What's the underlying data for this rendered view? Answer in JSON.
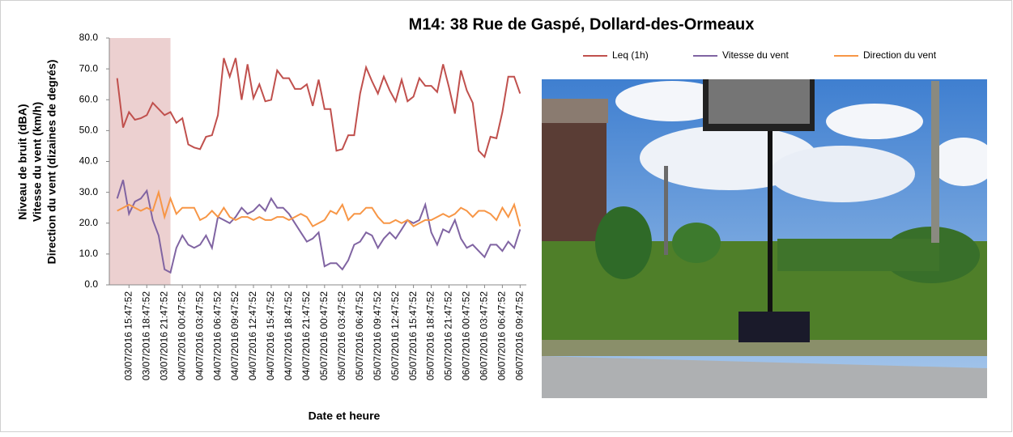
{
  "chart_data": {
    "type": "line",
    "title": "M14: 38 Rue de Gaspé, Dollard-des-Ormeaux",
    "x_label": "Date et heure",
    "y_label": [
      "Niveau de bruit (dBA)",
      "Vitesse du vent (km/h)",
      "Direction du vent (dizaines de degrés)"
    ],
    "categories": [
      null,
      null,
      "03/07/2016 15:47:52",
      null,
      null,
      "03/07/2016 18:47:52",
      null,
      null,
      "03/07/2016 21:47:52",
      null,
      null,
      "04/07/2016 00:47:52",
      null,
      null,
      "04/07/2016 03:47:52",
      null,
      null,
      "04/07/2016 06:47:52",
      null,
      null,
      "04/07/2016 09:47:52",
      null,
      null,
      "04/07/2016 12:47:52",
      null,
      null,
      "04/07/2016 15:47:52",
      null,
      null,
      "04/07/2016 18:47:52",
      null,
      null,
      "04/07/2016 21:47:52",
      null,
      null,
      "05/07/2016 00:47:52",
      null,
      null,
      "05/07/2016 03:47:52",
      null,
      null,
      "05/07/2016 06:47:52",
      null,
      null,
      "05/07/2016 09:47:52",
      null,
      null,
      "05/07/2016 12:47:52",
      null,
      null,
      "05/07/2016 15:47:52",
      null,
      null,
      "05/07/2016 18:47:52",
      null,
      null,
      "05/07/2016 21:47:52",
      null,
      null,
      "06/07/2016 00:47:52",
      null,
      null,
      "06/07/2016 03:47:52",
      null,
      null,
      "06/07/2016 06:47:52",
      null,
      null,
      "06/07/2016 09:47:52"
    ],
    "series": [
      {
        "name": "Leq (1h)",
        "color": "#c0504d",
        "values": [
          67,
          51,
          56,
          53.5,
          54,
          55,
          59,
          57,
          55,
          56,
          52.5,
          54,
          45.5,
          44.5,
          44,
          48,
          48.5,
          55,
          73.5,
          67.5,
          73.5,
          60,
          71.5,
          60.5,
          65,
          59.5,
          60,
          69.5,
          67,
          67,
          63.5,
          63.5,
          65,
          58,
          66.5,
          57,
          57,
          43.5,
          44,
          48.5,
          48.5,
          62,
          70.5,
          66,
          62,
          67.5,
          63,
          59.5,
          66.5,
          59.5,
          61,
          67,
          64.5,
          64.5,
          62.5,
          71.5,
          64,
          55.5,
          69.5,
          63,
          59,
          43.5,
          41.5,
          48,
          47.5,
          56,
          67.5,
          67.5,
          62
        ]
      },
      {
        "name": "Vitesse du vent",
        "color": "#8064a2",
        "values": [
          28,
          34,
          23,
          27,
          28,
          30.5,
          21,
          16,
          5,
          4,
          12,
          16,
          13,
          12,
          13,
          16,
          12,
          22,
          21,
          20,
          22,
          25,
          23,
          24,
          26,
          24,
          28,
          25,
          25,
          23,
          20,
          17,
          14,
          15,
          17,
          6,
          7,
          7,
          5,
          8,
          13,
          14,
          17,
          16,
          12,
          15,
          17,
          15,
          18,
          21,
          20,
          21,
          26,
          17,
          13,
          18,
          17,
          21,
          15,
          12,
          13,
          11,
          9,
          13,
          13,
          11,
          14,
          12,
          18
        ]
      },
      {
        "name": "Direction du vent",
        "color": "#f79646",
        "values": [
          24,
          25,
          26,
          25,
          24,
          25,
          24,
          30,
          22,
          28,
          23,
          25,
          25,
          25,
          21,
          22,
          24,
          22,
          25,
          22,
          21,
          22,
          22,
          21,
          22,
          21,
          21,
          22,
          22,
          21,
          22,
          23,
          22,
          19,
          20,
          21,
          24,
          23,
          26,
          21,
          23,
          23,
          25,
          25,
          22,
          20,
          20,
          21,
          20,
          21,
          19,
          20,
          21,
          21,
          22,
          23,
          22,
          23,
          25,
          24,
          22,
          24,
          24,
          23,
          21,
          25,
          22,
          26,
          19
        ]
      }
    ],
    "ylim": [
      0,
      80
    ],
    "yticks": [
      {
        "value": 0,
        "label": "0.0"
      },
      {
        "value": 10,
        "label": "10.0"
      },
      {
        "value": 20,
        "label": "20.0"
      },
      {
        "value": 30,
        "label": "30.0"
      },
      {
        "value": 40,
        "label": "40.0"
      },
      {
        "value": 50,
        "label": "50.0"
      },
      {
        "value": 60,
        "label": "60.0"
      },
      {
        "value": 70,
        "label": "70.0"
      },
      {
        "value": 80,
        "label": "80.0"
      }
    ],
    "grid": false,
    "legend": "top",
    "highlight": {
      "to": 9,
      "color": "#ecd0d0"
    }
  }
}
